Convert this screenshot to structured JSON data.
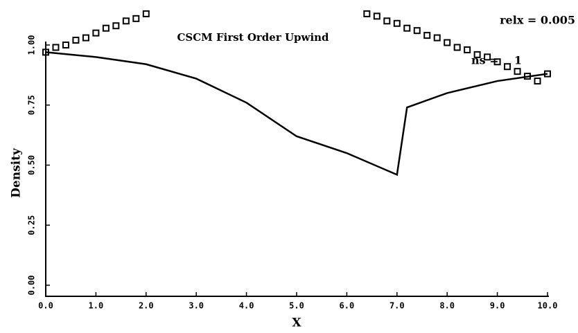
{
  "chart_data": {
    "type": "line",
    "title": "CSCM First Order Upwind",
    "xlabel": "X",
    "ylabel": "Density",
    "annotations": [
      "relx =  0.005",
      "ns =    1"
    ],
    "xlim": [
      0,
      10
    ],
    "ylim": [
      -0.05,
      1.2
    ],
    "xticks": [
      {
        "value": 0,
        "label": "0.0"
      },
      {
        "value": 1,
        "label": "1.0"
      },
      {
        "value": 2,
        "label": "2.0"
      },
      {
        "value": 3,
        "label": "3.0"
      },
      {
        "value": 4,
        "label": "4.0"
      },
      {
        "value": 5,
        "label": "5.0"
      },
      {
        "value": 6,
        "label": "6.0"
      },
      {
        "value": 7,
        "label": "7.0"
      },
      {
        "value": 8,
        "label": "8.0"
      },
      {
        "value": 9,
        "label": "9.0"
      },
      {
        "value": 10,
        "label": "10.0"
      }
    ],
    "yticks": [
      {
        "value": 0,
        "label": "0.00"
      },
      {
        "value": 0.25,
        "label": "0.25"
      },
      {
        "value": 0.5,
        "label": "0.50"
      },
      {
        "value": 0.75,
        "label": "0.75"
      },
      {
        "value": 1,
        "label": "1.00"
      }
    ],
    "series": [
      {
        "color": "#000000",
        "style": "line",
        "x": [
          0,
          1,
          2,
          3,
          4,
          5,
          6,
          7,
          7.2,
          8,
          9,
          10
        ],
        "values": [
          0.97,
          0.95,
          0.92,
          0.86,
          0.76,
          0.62,
          0.55,
          0.46,
          0.74,
          0.8,
          0.85,
          0.88
        ]
      },
      {
        "color": "#000000",
        "style": "markers",
        "x": [
          0,
          0.2,
          0.4,
          0.6,
          0.8,
          1.0,
          1.2,
          1.4,
          1.6,
          1.8,
          2.0,
          6.4,
          6.6,
          6.8,
          7.0,
          7.2,
          7.4,
          7.6,
          7.8,
          8.0,
          8.2,
          8.4,
          8.6,
          8.8,
          9.0,
          9.2,
          9.4,
          9.6,
          9.8,
          10.0
        ],
        "values": [
          0.97,
          0.99,
          1.0,
          1.02,
          1.03,
          1.05,
          1.07,
          1.08,
          1.1,
          1.11,
          1.13,
          1.13,
          1.12,
          1.1,
          1.09,
          1.07,
          1.06,
          1.04,
          1.03,
          1.01,
          0.99,
          0.98,
          0.96,
          0.95,
          0.93,
          0.91,
          0.89,
          0.87,
          0.85,
          0.88
        ]
      }
    ]
  }
}
